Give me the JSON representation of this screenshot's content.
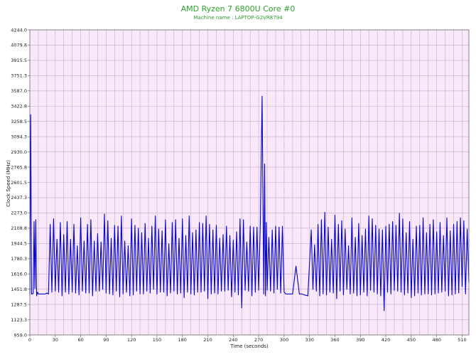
{
  "chart_data": {
    "type": "line",
    "title": "AMD Ryzen 7 6800U Core #0",
    "subtitle": "Machine name : LAPTOP-G2VR8794",
    "xlabel": "Time (seconds)",
    "ylabel": "Clock Speed (MHz)",
    "xlim": [
      0,
      518
    ],
    "ylim": [
      959.0,
      4244.0
    ],
    "x_ticks": [
      0,
      30,
      60,
      90,
      120,
      150,
      180,
      210,
      240,
      270,
      300,
      330,
      360,
      390,
      420,
      450,
      480,
      510
    ],
    "y_ticks": [
      959.0,
      1123.3,
      1287.5,
      1451.8,
      1616.0,
      1780.3,
      1944.5,
      2108.8,
      2273.0,
      2437.3,
      2601.5,
      2765.8,
      2930.0,
      3094.3,
      3258.5,
      3422.8,
      3587.0,
      3751.3,
      3915.5,
      4079.8,
      4244.0
    ],
    "grid": true,
    "legend": "none",
    "series": [
      {
        "color": "#0000cc",
        "x": [
          0,
          1,
          2,
          3,
          4,
          5,
          6,
          7,
          8,
          9,
          10,
          12,
          14,
          16,
          18,
          20,
          22,
          24,
          26,
          28,
          30,
          32,
          34,
          36,
          38,
          40,
          42,
          44,
          46,
          48,
          50,
          52,
          54,
          56,
          58,
          60,
          62,
          64,
          66,
          68,
          70,
          72,
          74,
          76,
          78,
          80,
          82,
          84,
          86,
          88,
          90,
          92,
          94,
          96,
          98,
          100,
          102,
          104,
          106,
          108,
          110,
          112,
          114,
          116,
          118,
          120,
          122,
          124,
          126,
          128,
          130,
          132,
          134,
          136,
          138,
          140,
          142,
          144,
          146,
          148,
          150,
          152,
          154,
          156,
          158,
          160,
          162,
          164,
          166,
          168,
          170,
          172,
          174,
          176,
          178,
          180,
          182,
          184,
          186,
          188,
          190,
          192,
          194,
          196,
          198,
          200,
          202,
          204,
          206,
          208,
          210,
          212,
          214,
          216,
          218,
          220,
          222,
          224,
          226,
          228,
          230,
          232,
          234,
          236,
          238,
          240,
          242,
          244,
          246,
          248,
          250,
          252,
          254,
          256,
          258,
          260,
          262,
          264,
          266,
          268,
          270,
          272,
          274,
          276,
          277,
          278,
          279,
          280,
          282,
          284,
          286,
          288,
          290,
          292,
          294,
          296,
          298,
          300,
          302,
          304,
          306,
          310,
          314,
          318,
          319,
          320,
          321,
          324,
          328,
          332,
          334,
          336,
          338,
          340,
          342,
          344,
          346,
          348,
          350,
          352,
          354,
          356,
          358,
          360,
          362,
          364,
          366,
          368,
          370,
          372,
          374,
          376,
          378,
          380,
          382,
          384,
          386,
          388,
          390,
          392,
          394,
          396,
          398,
          400,
          402,
          404,
          406,
          408,
          410,
          412,
          414,
          416,
          418,
          420,
          422,
          424,
          426,
          428,
          430,
          432,
          434,
          436,
          438,
          440,
          442,
          444,
          446,
          448,
          450,
          452,
          454,
          456,
          458,
          460,
          462,
          464,
          466,
          468,
          470,
          472,
          474,
          476,
          478,
          480,
          482,
          484,
          486,
          488,
          490,
          492,
          494,
          496,
          498,
          500,
          502,
          504,
          506,
          508,
          510,
          512,
          514,
          516,
          518
        ],
        "y": [
          1400,
          3330,
          1400,
          1400,
          1410,
          2180,
          1460,
          2200,
          1380,
          1420,
          1400,
          1400,
          1400,
          1400,
          1400,
          1410,
          1400,
          2150,
          1420,
          2210,
          1430,
          1990,
          1420,
          2170,
          1380,
          2040,
          1420,
          2180,
          1400,
          1990,
          1420,
          2150,
          1410,
          1920,
          1390,
          2220,
          1430,
          1970,
          1410,
          2150,
          1410,
          2200,
          1380,
          1970,
          1430,
          2050,
          1430,
          1960,
          1450,
          2260,
          1410,
          2190,
          1400,
          2000,
          1390,
          2140,
          1430,
          2130,
          1370,
          2240,
          1400,
          1970,
          1420,
          1920,
          1380,
          2210,
          1390,
          2140,
          1430,
          2110,
          1400,
          2060,
          1400,
          2160,
          1430,
          2000,
          1410,
          2130,
          1450,
          2240,
          1400,
          2100,
          1420,
          2080,
          1420,
          2200,
          1380,
          1940,
          1410,
          2170,
          1430,
          2200,
          1400,
          2000,
          1410,
          2210,
          1360,
          2030,
          1420,
          2240,
          1400,
          2060,
          1390,
          2090,
          1420,
          2170,
          1420,
          2160,
          1430,
          2240,
          1350,
          2150,
          1400,
          2090,
          1410,
          2140,
          1400,
          2000,
          1430,
          2040,
          1430,
          2130,
          1440,
          2030,
          1370,
          1980,
          1420,
          2070,
          1390,
          2210,
          1250,
          2200,
          1440,
          1960,
          1430,
          2130,
          1380,
          2120,
          1420,
          2120,
          1440,
          2190,
          3530,
          1400,
          2800,
          1380,
          2170,
          1440,
          2010,
          1430,
          2090,
          1410,
          2130,
          1450,
          2120,
          1410,
          2130,
          1420,
          1400,
          1400,
          1400,
          1400,
          1700,
          1400,
          1400,
          1400,
          1400,
          1390,
          1380,
          2090,
          1450,
          1930,
          1430,
          2150,
          1380,
          2200,
          1400,
          2280,
          1390,
          2120,
          1420,
          1990,
          1410,
          2250,
          1350,
          2150,
          1430,
          2190,
          1390,
          2100,
          1450,
          1920,
          1400,
          2220,
          1410,
          2010,
          1380,
          2160,
          1390,
          2030,
          1420,
          2100,
          1380,
          2240,
          1440,
          2210,
          1420,
          2140,
          1400,
          2100,
          1380,
          2090,
          1220,
          2130,
          1420,
          2150,
          1400,
          2180,
          1440,
          2140,
          1430,
          2270,
          1420,
          2210,
          1390,
          2060,
          1410,
          2180,
          1360,
          1990,
          1380,
          2130,
          1410,
          2140,
          1390,
          2220,
          1400,
          2060,
          1400,
          2150,
          1390,
          2200,
          1400,
          2070,
          1410,
          2170,
          1420,
          2030,
          1430,
          2220,
          1380,
          2080,
          1390,
          2150,
          1400,
          2180,
          1410,
          2220,
          1480,
          2190,
          1400,
          2100,
          1520
        ]
      }
    ]
  }
}
